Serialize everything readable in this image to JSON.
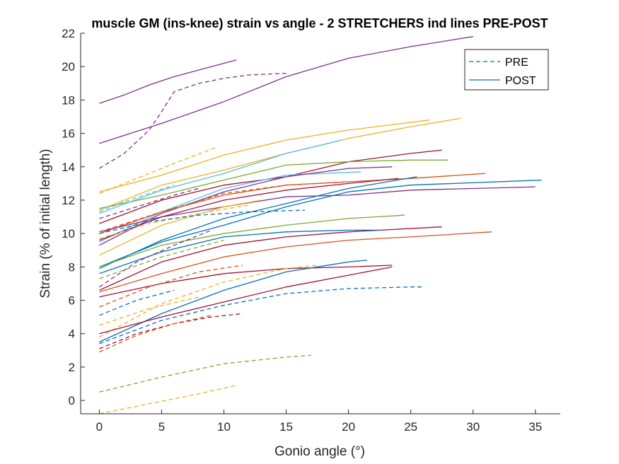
{
  "chart_data": {
    "type": "line",
    "title": "muscle GM (ins-knee) strain vs angle - 2 STRETCHERS ind lines PRE-POST",
    "xlabel": "Gonio angle (°)",
    "ylabel": "Strain (% of initial length)",
    "xlim": [
      -1.5,
      37
    ],
    "ylim": [
      -0.8,
      22
    ],
    "xticks": [
      0,
      5,
      10,
      15,
      20,
      25,
      30,
      35
    ],
    "yticks": [
      0,
      2,
      4,
      6,
      8,
      10,
      12,
      14,
      16,
      18,
      20,
      22
    ],
    "grid": false,
    "legend": {
      "placement": "top-right",
      "entries": [
        {
          "label": "PRE",
          "style": "dashed",
          "color": "#0072BD"
        },
        {
          "label": "POST",
          "style": "solid",
          "color": "#0072BD"
        }
      ]
    },
    "series": [
      {
        "color": "#7E2F8E",
        "style": "solid",
        "x": [
          0,
          2,
          4,
          6,
          8,
          10,
          11
        ],
        "y": [
          17.8,
          18.3,
          18.9,
          19.4,
          19.8,
          20.2,
          20.4
        ]
      },
      {
        "color": "#7E2F8E",
        "style": "solid",
        "x": [
          0,
          5,
          10,
          15,
          20,
          25,
          30
        ],
        "y": [
          15.4,
          16.6,
          17.9,
          19.4,
          20.5,
          21.2,
          21.8
        ]
      },
      {
        "color": "#7E2F8E",
        "style": "dashed",
        "x": [
          0,
          2,
          4,
          5,
          6,
          8,
          10,
          12,
          15
        ],
        "y": [
          13.9,
          14.8,
          16.2,
          17.3,
          18.5,
          19.0,
          19.3,
          19.5,
          19.6
        ]
      },
      {
        "color": "#EDB120",
        "style": "solid",
        "x": [
          0,
          5,
          10,
          15,
          20,
          26.5
        ],
        "y": [
          12.5,
          13.5,
          14.7,
          15.6,
          16.2,
          16.8
        ]
      },
      {
        "color": "#EDB120",
        "style": "solid",
        "x": [
          0,
          5,
          10,
          15,
          20,
          25,
          29
        ],
        "y": [
          11.4,
          12.9,
          13.8,
          14.8,
          15.7,
          16.4,
          16.9
        ]
      },
      {
        "color": "#EDB120",
        "style": "dashed",
        "x": [
          0,
          3,
          6,
          9.5
        ],
        "y": [
          12.4,
          13.3,
          14.2,
          15.2
        ]
      },
      {
        "color": "#4DBEEE",
        "style": "solid",
        "x": [
          0,
          5,
          10,
          15,
          19.5
        ],
        "y": [
          11.2,
          12.6,
          13.6,
          14.8,
          15.6
        ]
      },
      {
        "color": "#4DBEEE",
        "style": "dashed",
        "x": [
          0,
          2,
          4,
          6
        ],
        "y": [
          11.3,
          11.9,
          12.4,
          12.9
        ]
      },
      {
        "color": "#A2142F",
        "style": "solid",
        "x": [
          0,
          5,
          10,
          15,
          20,
          25,
          27.5
        ],
        "y": [
          10.6,
          12.0,
          12.9,
          13.4,
          14.3,
          14.8,
          15.0
        ]
      },
      {
        "color": "#77AC30",
        "style": "solid",
        "x": [
          0,
          5,
          10,
          15,
          20,
          25,
          28
        ],
        "y": [
          11.5,
          12.3,
          13.2,
          14.1,
          14.3,
          14.4,
          14.4
        ]
      },
      {
        "color": "#4DBEEE",
        "style": "solid",
        "x": [
          0,
          5,
          10,
          15,
          21
        ],
        "y": [
          9.5,
          11.3,
          12.7,
          13.5,
          13.7
        ]
      },
      {
        "color": "#7E2F8E",
        "style": "solid",
        "x": [
          0,
          5,
          10,
          15,
          20,
          23.5
        ],
        "y": [
          9.3,
          11.2,
          12.5,
          13.4,
          13.9,
          14.0
        ]
      },
      {
        "color": "#D95319",
        "style": "solid",
        "x": [
          0,
          5,
          10,
          15,
          20,
          25,
          31
        ],
        "y": [
          10.0,
          11.3,
          12.3,
          12.9,
          13.1,
          13.3,
          13.6
        ]
      },
      {
        "color": "#0072BD",
        "style": "solid",
        "x": [
          0,
          5,
          10,
          15,
          20,
          25,
          35.5
        ],
        "y": [
          8.0,
          9.5,
          10.5,
          11.6,
          12.5,
          12.9,
          13.2
        ]
      },
      {
        "color": "#7E2F8E",
        "style": "solid",
        "x": [
          0,
          5,
          10,
          15,
          20,
          25,
          35
        ],
        "y": [
          10.1,
          11.0,
          11.6,
          12.2,
          12.3,
          12.6,
          12.8
        ]
      },
      {
        "color": "#0072BD",
        "style": "solid",
        "x": [
          0,
          5,
          10,
          15,
          20,
          25.5
        ],
        "y": [
          7.9,
          9.6,
          10.9,
          11.8,
          12.7,
          13.4
        ]
      },
      {
        "color": "#A2142F",
        "style": "solid",
        "x": [
          0,
          5,
          10,
          15,
          20,
          24
        ],
        "y": [
          9.6,
          11.0,
          12.0,
          12.6,
          13.0,
          13.3
        ]
      },
      {
        "color": "#D95319",
        "style": "dashed",
        "x": [
          0,
          5,
          10,
          15,
          20
        ],
        "y": [
          10.1,
          11.3,
          12.4,
          12.9,
          13.1
        ]
      },
      {
        "color": "#7E2F8E",
        "style": "dashed",
        "x": [
          0,
          3,
          6,
          8
        ],
        "y": [
          10.9,
          11.6,
          12.3,
          12.7
        ]
      },
      {
        "color": "#EDB120",
        "style": "solid",
        "x": [
          0,
          5,
          10,
          13
        ],
        "y": [
          8.7,
          10.5,
          11.6,
          12.0
        ]
      },
      {
        "color": "#EDB120",
        "style": "dashed",
        "x": [
          0,
          4,
          8,
          12
        ],
        "y": [
          9.7,
          10.6,
          11.2,
          11.7
        ]
      },
      {
        "color": "#0072BD",
        "style": "dashed",
        "x": [
          0,
          4,
          8,
          12,
          16.5
        ],
        "y": [
          10.0,
          10.7,
          11.1,
          11.3,
          11.4
        ]
      },
      {
        "color": "#77AC30",
        "style": "solid",
        "x": [
          0,
          5,
          10,
          15,
          20,
          24.5
        ],
        "y": [
          8.0,
          9.3,
          10.0,
          10.5,
          10.9,
          11.1
        ]
      },
      {
        "color": "#A2142F",
        "style": "solid",
        "x": [
          0,
          5,
          10,
          15,
          20,
          27.5
        ],
        "y": [
          6.6,
          8.3,
          9.3,
          9.8,
          10.1,
          10.4
        ]
      },
      {
        "color": "#D95319",
        "style": "solid",
        "x": [
          0,
          5,
          10,
          15,
          20,
          25,
          31.5
        ],
        "y": [
          6.5,
          7.6,
          8.6,
          9.2,
          9.6,
          9.8,
          10.1
        ]
      },
      {
        "color": "#0072BD",
        "style": "solid",
        "x": [
          0,
          5,
          10,
          15,
          20,
          22.5
        ],
        "y": [
          7.6,
          8.9,
          9.8,
          10.1,
          10.2,
          10.2
        ]
      },
      {
        "color": "#77AC30",
        "style": "dashed",
        "x": [
          0,
          5,
          10
        ],
        "y": [
          7.3,
          8.6,
          9.6
        ]
      },
      {
        "color": "#7E2F8E",
        "style": "dashed",
        "x": [
          0,
          3,
          6,
          9
        ],
        "y": [
          6.8,
          8.3,
          9.3,
          10.2
        ]
      },
      {
        "color": "#A2142F",
        "style": "solid",
        "x": [
          0,
          5,
          10,
          15,
          20,
          23.5
        ],
        "y": [
          6.2,
          7.0,
          7.6,
          7.9,
          8.0,
          8.1
        ]
      },
      {
        "color": "#EDB120",
        "style": "dashed",
        "x": [
          0,
          5,
          10,
          15,
          17.5
        ],
        "y": [
          3.8,
          5.8,
          7.1,
          7.9,
          8.1
        ]
      },
      {
        "color": "#D95319",
        "style": "dashed",
        "x": [
          0,
          4,
          8,
          11.5
        ],
        "y": [
          5.6,
          6.8,
          7.7,
          8.1
        ]
      },
      {
        "color": "#0072BD",
        "style": "solid",
        "x": [
          0,
          5,
          10,
          15,
          20,
          21.5
        ],
        "y": [
          3.5,
          5.2,
          6.6,
          7.7,
          8.3,
          8.4
        ]
      },
      {
        "color": "#A2142F",
        "style": "solid",
        "x": [
          0,
          5,
          10,
          15,
          20,
          23.5
        ],
        "y": [
          4.0,
          5.0,
          5.9,
          6.8,
          7.5,
          8.0
        ]
      },
      {
        "color": "#0072BD",
        "style": "dashed",
        "x": [
          0,
          5,
          10,
          15,
          20,
          25,
          26
        ],
        "y": [
          3.4,
          4.8,
          5.7,
          6.4,
          6.7,
          6.8,
          6.8
        ]
      },
      {
        "color": "#EDB120",
        "style": "dashed",
        "x": [
          0,
          4,
          8
        ],
        "y": [
          4.5,
          5.5,
          6.2
        ]
      },
      {
        "color": "#0072BD",
        "style": "dashed",
        "x": [
          0,
          3,
          6
        ],
        "y": [
          5.1,
          6.0,
          6.6
        ]
      },
      {
        "color": "#A2142F",
        "style": "dashed",
        "x": [
          0,
          3,
          6,
          9,
          11.5
        ],
        "y": [
          3.1,
          4.0,
          4.6,
          5.0,
          5.2
        ]
      },
      {
        "color": "#D95319",
        "style": "dashed",
        "x": [
          0,
          3,
          6,
          9
        ],
        "y": [
          2.9,
          3.9,
          4.6,
          5.1
        ]
      },
      {
        "color": "#77AC30",
        "style": "dashed",
        "x": [
          0,
          5,
          10,
          15,
          17
        ],
        "y": [
          0.5,
          1.4,
          2.2,
          2.6,
          2.7
        ]
      },
      {
        "color": "#EDB120",
        "style": "dashed",
        "x": [
          0,
          4,
          8,
          11
        ],
        "y": [
          -0.8,
          -0.2,
          0.4,
          0.9
        ]
      }
    ]
  }
}
